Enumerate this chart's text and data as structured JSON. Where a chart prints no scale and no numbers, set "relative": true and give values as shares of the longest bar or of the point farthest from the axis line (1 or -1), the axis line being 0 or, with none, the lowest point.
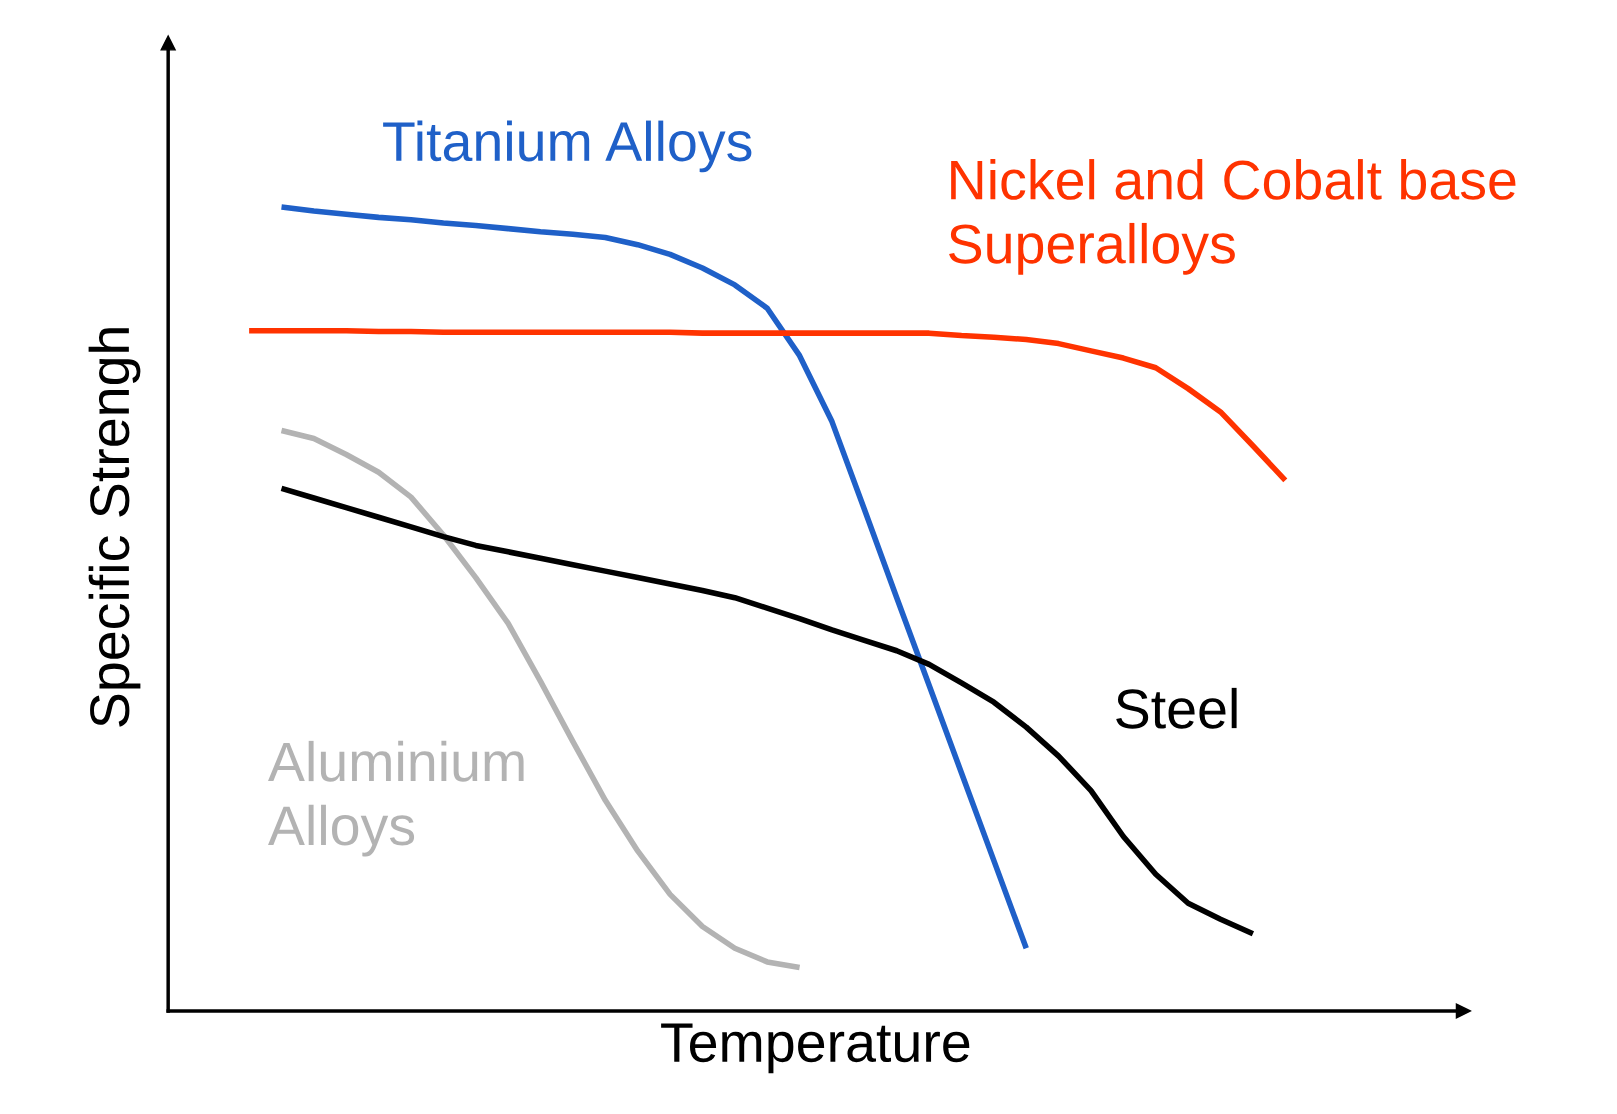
{
  "chart_data": {
    "type": "line",
    "relative": true,
    "xlabel": "Temperature",
    "ylabel": "Specific Strengh",
    "marker": "none",
    "line_style": "solid",
    "categories": [
      null,
      null,
      null,
      null,
      null,
      null,
      null,
      null,
      null,
      null,
      null,
      null,
      null,
      null,
      null,
      null,
      null,
      null,
      null,
      null,
      null,
      null,
      null,
      null,
      null,
      null,
      null,
      null,
      null,
      null,
      null,
      null,
      null,
      null,
      null,
      null,
      null,
      null,
      null,
      null
    ],
    "series": [
      {
        "name": "Titanium Alloys",
        "color": "#1f60c8",
        "values": [
          null,
          null,
          null,
          1.0,
          0.995,
          0.991,
          0.987,
          0.984,
          0.98,
          0.977,
          0.973,
          0.969,
          0.966,
          0.962,
          0.953,
          0.941,
          0.924,
          0.903,
          0.874,
          0.815,
          0.733,
          0.624,
          0.514,
          0.405,
          0.296,
          0.187,
          0.078,
          null,
          null,
          null,
          null,
          null,
          null,
          null,
          null,
          null,
          null,
          null,
          null,
          null
        ]
      },
      {
        "name": "Nickel and Cobalt base\nSuperalloys",
        "color": "#ff3300",
        "values": [
          null,
          null,
          0.846,
          0.846,
          0.846,
          0.846,
          0.845,
          0.845,
          0.844,
          0.844,
          0.844,
          0.844,
          0.844,
          0.844,
          0.844,
          0.844,
          0.843,
          0.843,
          0.843,
          0.843,
          0.843,
          0.843,
          0.843,
          0.843,
          0.84,
          0.838,
          0.835,
          0.83,
          0.821,
          0.812,
          0.8,
          0.774,
          0.745,
          0.703,
          0.66,
          null,
          null,
          null,
          null,
          null
        ]
      },
      {
        "name": "Aluminium\nAlloys",
        "color": "#b3b3b3",
        "values": [
          null,
          null,
          null,
          0.722,
          0.712,
          0.692,
          0.67,
          0.639,
          0.592,
          0.539,
          0.482,
          0.41,
          0.335,
          0.262,
          0.199,
          0.145,
          0.105,
          0.078,
          0.061,
          0.054,
          null,
          null,
          null,
          null,
          null,
          null,
          null,
          null,
          null,
          null,
          null,
          null,
          null,
          null,
          null,
          null,
          null,
          null,
          null,
          null
        ]
      },
      {
        "name": "Steel",
        "color": "#000000",
        "values": [
          null,
          null,
          null,
          0.65,
          0.638,
          0.626,
          0.614,
          0.602,
          0.59,
          0.579,
          0.571,
          0.563,
          0.555,
          0.547,
          0.539,
          0.531,
          0.523,
          0.514,
          0.501,
          0.488,
          0.474,
          0.461,
          0.448,
          0.431,
          0.408,
          0.384,
          0.353,
          0.317,
          0.274,
          0.217,
          0.17,
          0.134,
          0.114,
          0.096,
          null,
          null,
          null,
          null,
          null,
          null
        ]
      }
    ]
  }
}
